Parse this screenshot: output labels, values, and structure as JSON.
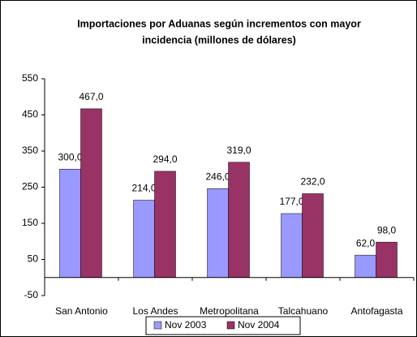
{
  "chart_data": {
    "type": "bar",
    "title": "Importaciones por Aduanas según incrementos con mayor incidencia (millones de dólares)",
    "title_lines": [
      "Importaciones por Aduanas según incrementos con mayor",
      "incidencia (millones de dólares)"
    ],
    "categories": [
      "San Antonio",
      "Los Andes",
      "Metropolitana",
      "Talcahuano",
      "Antofagasta"
    ],
    "series": [
      {
        "name": "Nov 2003",
        "color": "#9999ff",
        "values": [
          300,
          214,
          246,
          177,
          62
        ],
        "value_labels": [
          "300,0",
          "214,0",
          "246,0",
          "177,0",
          "62,0"
        ]
      },
      {
        "name": "Nov 2004",
        "color": "#993366",
        "values": [
          467,
          294,
          319,
          232,
          98
        ],
        "value_labels": [
          "467,0",
          "294,0",
          "319,0",
          "232,0",
          "98,0"
        ]
      }
    ],
    "ylim": [
      -50,
      550
    ],
    "yticks": [
      -50,
      50,
      150,
      250,
      350,
      450,
      550
    ],
    "legend": "bottom"
  }
}
